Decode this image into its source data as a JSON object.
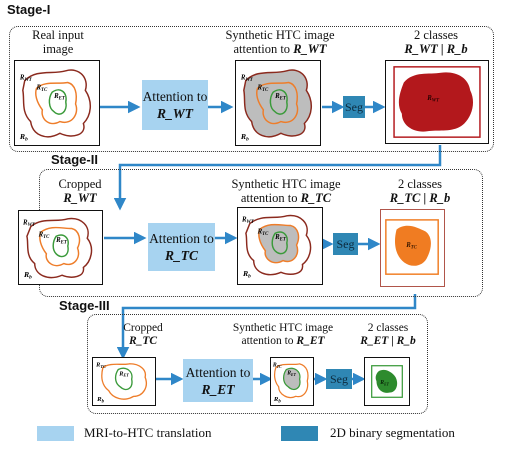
{
  "stages": [
    {
      "title": "Stage-I",
      "input_label": [
        "Real input",
        "image"
      ],
      "attention_box": {
        "line1": "Attention to",
        "target": "R_WT"
      },
      "synthetic_label": [
        "Synthetic HTC image",
        "attention to"
      ],
      "synthetic_target": "R_WT",
      "seg_label": "Seg",
      "classes_label": "2 classes",
      "classes_pair": "R_WT | R_b",
      "output_region": "R_WT"
    },
    {
      "title": "Stage-II",
      "input_label": [
        "Cropped",
        "R_WT"
      ],
      "attention_box": {
        "line1": "Attention to",
        "target": "R_TC"
      },
      "synthetic_label": [
        "Synthetic HTC image",
        "attention to"
      ],
      "synthetic_target": "R_TC",
      "seg_label": "Seg",
      "classes_label": "2 classes",
      "classes_pair": "R_TC | R_b",
      "output_region": "R_TC"
    },
    {
      "title": "Stage-III",
      "input_label": [
        "Cropped",
        "R_TC"
      ],
      "attention_box": {
        "line1": "Attention to",
        "target": "R_ET"
      },
      "synthetic_label": [
        "Synthetic HTC image",
        "attention to"
      ],
      "synthetic_target": "R_ET",
      "seg_label": "Seg",
      "classes_label": "2 classes",
      "classes_pair": "R_ET | R_b",
      "output_region": "R_ET"
    }
  ],
  "region_labels": {
    "wt": "R_WT",
    "tc": "R_TC",
    "et": "R_ET",
    "b": "R_b"
  },
  "legend": [
    {
      "label": "MRI-to-HTC translation",
      "color": "#a7d3f0"
    },
    {
      "label": "2D binary segmentation",
      "color": "#2f87b4"
    }
  ],
  "colors": {
    "wt_contour": "#8b2a1e",
    "tc_contour": "#ee7d2a",
    "et_contour": "#3a9a3a",
    "wt_fill": "#b3181c",
    "tc_fill": "#f07c22",
    "et_fill": "#2e8b2e",
    "synthetic_fill": "#bdbdbd",
    "arrow": "#2f87c8"
  }
}
